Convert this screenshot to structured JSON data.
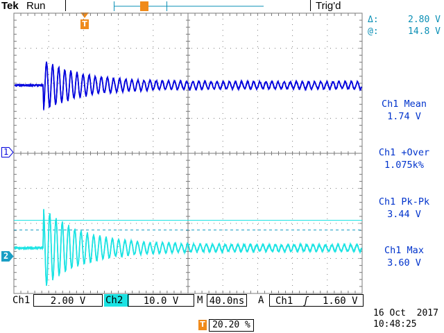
{
  "header": {
    "brand": "Tek",
    "acq_state": "Run",
    "trigger_status": "Trig'd",
    "trigger_marker": "T"
  },
  "cursor_readout": {
    "delta_symbol": "Δ:",
    "delta_value": "2.80 V",
    "at_symbol": "@:",
    "at_value": "14.8 V"
  },
  "measurements": [
    {
      "label": "Ch1 Mean",
      "value": "1.74 V"
    },
    {
      "label": "Ch1 +Over",
      "value": "1.075k%"
    },
    {
      "label": "Ch1 Pk-Pk",
      "value": "3.44 V"
    },
    {
      "label": "Ch1 Max",
      "value": "3.60 V"
    }
  ],
  "channel_markers": {
    "ch1": "1",
    "ch2": "2"
  },
  "bottom_bar": {
    "ch1_label": "Ch1",
    "ch1_scale": "2.00 V",
    "ch2_label": "Ch2",
    "ch2_scale": "10.0 V",
    "timebase_label": "M",
    "timebase_value": "40.0ns",
    "trigger_mode_label": "A",
    "trigger_source": "Ch1",
    "trigger_slope_symbol": "ʃ",
    "trigger_level": "1.60 V"
  },
  "trigger_position": {
    "marker": "T",
    "value": "20.20 %"
  },
  "datetime": {
    "date": "16 Oct  2017",
    "time": "10:48:25"
  },
  "colors": {
    "ch1": "#0000dd",
    "ch2": "#1ae3e3",
    "grid": "#7a7a7a",
    "trigger": "#f08a1a",
    "readout": "#0033cc"
  },
  "traces": {
    "ch1": {
      "baseline_div": 2.0,
      "event_start_div": 0.85,
      "initial_amplitude_div": 0.72,
      "decay_amplitude_div": 0.1,
      "period_div": 0.175,
      "noise_div": 0.06
    },
    "ch2": {
      "baseline_div": 0.06,
      "event_start_div": 0.85,
      "initial_amplitude_div": 1.15,
      "decay_amplitude_div": 0.09,
      "period_div": 0.18,
      "noise_div": 0.07
    }
  }
}
